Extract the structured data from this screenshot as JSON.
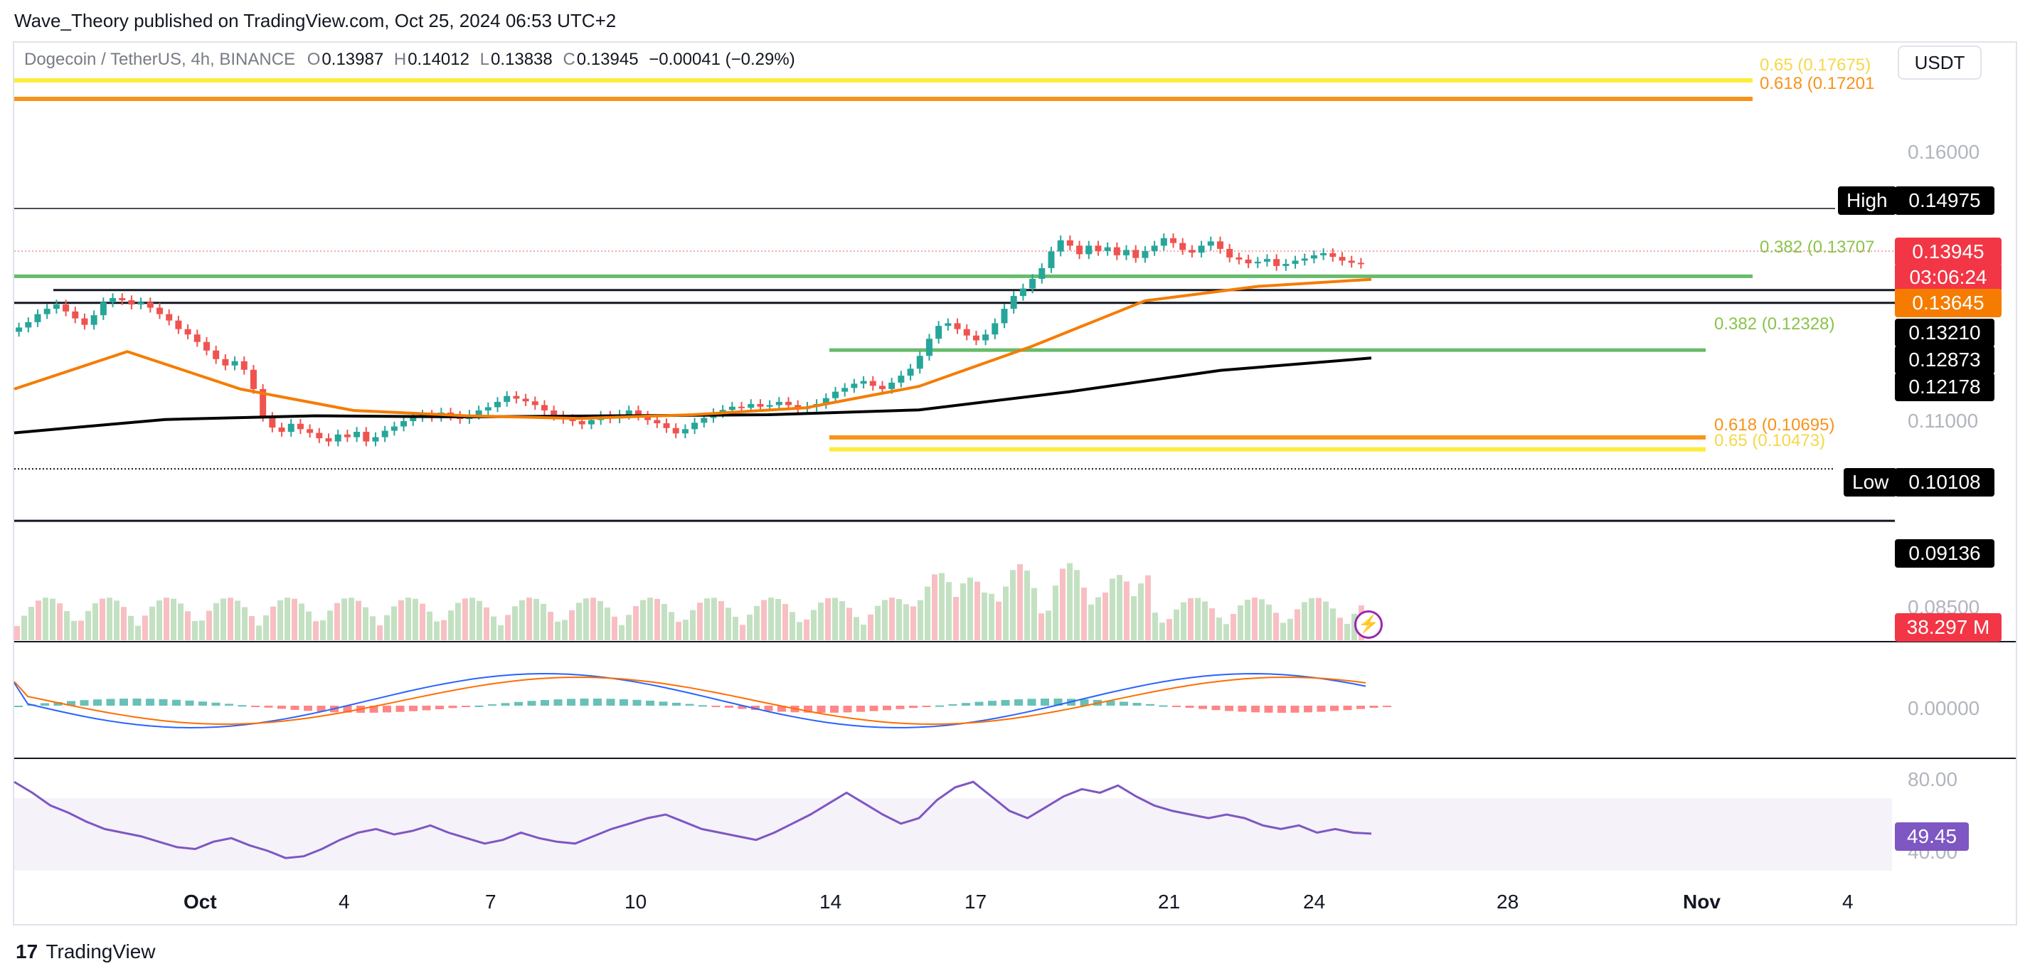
{
  "header": {
    "published_by": "Wave_Theory published on TradingView.com, Oct 25, 2024 06:53 UTC+2"
  },
  "legend": {
    "symbol": "Dogecoin / TetherUS, 4h, BINANCE",
    "open_key": "O",
    "open": "0.13987",
    "high_key": "H",
    "high": "0.14012",
    "low_key": "L",
    "low": "0.13838",
    "close_key": "C",
    "close": "0.13945",
    "change": "−0.00041 (−0.29%)"
  },
  "currency": "USDT",
  "price_scale": [
    "0.16000",
    "0.11000",
    "0.08500",
    "0.00000",
    "80.00",
    "40.00"
  ],
  "price_tags": {
    "high_label": "High",
    "high_value": "0.14975",
    "last": "0.13945",
    "countdown": "03:06:24",
    "ema50": "0.13645",
    "level_1": "0.13210",
    "level_2": "0.12873",
    "ema200": "0.12178",
    "low_label": "Low",
    "low_value": "0.10108",
    "level_3": "0.09136",
    "volume": "38.297 M",
    "rsi": "49.45"
  },
  "fib_labels": {
    "top_065": "0.65 (0.17675)",
    "top_0618": "0.618 (0.17201",
    "mid_0382": "0.382 (0.13707",
    "low_0382": "0.382 (0.12328)",
    "bottom_0618": "0.618 (0.10695)",
    "bottom_065": "0.65 (0.10473)"
  },
  "time_axis": [
    "Oct",
    "4",
    "7",
    "10",
    "14",
    "17",
    "21",
    "24",
    "28",
    "Nov",
    "4"
  ],
  "brand": {
    "logo": "17",
    "name": "TradingView"
  },
  "colors": {
    "up": "#26a69a",
    "down": "#ef5350",
    "ema50": "#f57c00",
    "ema200": "#000000",
    "fib_green": "#66bb6a",
    "fib_orange": "#f7931a",
    "fib_yellow": "#ffeb3b",
    "macd": "#2962ff",
    "signal": "#ff6d00",
    "rsi": "#7e57c2"
  },
  "chart_data": {
    "type": "candlestick",
    "title": "Dogecoin / TetherUS, 4h, BINANCE",
    "x_ticks": [
      "Oct",
      "4",
      "7",
      "10",
      "14",
      "17",
      "21",
      "24",
      "28",
      "Nov",
      "4"
    ],
    "price_range": [
      0.085,
      0.18
    ],
    "closes": [
      0.1275,
      0.1285,
      0.13,
      0.131,
      0.1318,
      0.1305,
      0.1292,
      0.128,
      0.1298,
      0.1322,
      0.133,
      0.1326,
      0.1318,
      0.1322,
      0.1312,
      0.13,
      0.1288,
      0.1272,
      0.1262,
      0.1248,
      0.1232,
      0.1216,
      0.1204,
      0.1212,
      0.1196,
      0.116,
      0.1108,
      0.1088,
      0.108,
      0.1095,
      0.1085,
      0.1078,
      0.1068,
      0.1062,
      0.1075,
      0.107,
      0.108,
      0.1062,
      0.107,
      0.1082,
      0.109,
      0.11,
      0.1108,
      0.1112,
      0.1108,
      0.1116,
      0.111,
      0.1104,
      0.1112,
      0.112,
      0.1126,
      0.1136,
      0.1147,
      0.1142,
      0.1137,
      0.113,
      0.112,
      0.111,
      0.1104,
      0.11,
      0.1094,
      0.1102,
      0.111,
      0.1105,
      0.1112,
      0.112,
      0.111,
      0.1102,
      0.1096,
      0.1087,
      0.1077,
      0.1085,
      0.1097,
      0.1106,
      0.1115,
      0.1121,
      0.1127,
      0.1125,
      0.1132,
      0.1127,
      0.113,
      0.1136,
      0.113,
      0.1123,
      0.1127,
      0.1132,
      0.1143,
      0.1155,
      0.1162,
      0.117,
      0.1175,
      0.1166,
      0.116,
      0.1172,
      0.1185,
      0.1198,
      0.1222,
      0.1254,
      0.1278,
      0.1283,
      0.1272,
      0.126,
      0.1251,
      0.1262,
      0.1283,
      0.131,
      0.1334,
      0.1348,
      0.1366,
      0.1386,
      0.1417,
      0.1438,
      0.1428,
      0.1412,
      0.1428,
      0.1418,
      0.1425,
      0.141,
      0.142,
      0.1405,
      0.1418,
      0.1428,
      0.1442,
      0.1433,
      0.142,
      0.1415,
      0.1428,
      0.1436,
      0.1422,
      0.1406,
      0.1402,
      0.1395,
      0.1398,
      0.1403,
      0.139,
      0.1394,
      0.14,
      0.1404,
      0.141,
      0.1414,
      0.1407,
      0.14,
      0.1396,
      0.1394
    ],
    "ema50": [
      0.116,
      0.123,
      0.116,
      0.112,
      0.111,
      0.1105,
      0.1112,
      0.1125,
      0.1165,
      0.124,
      0.1325,
      0.1352,
      0.1365
    ],
    "ema200": [
      0.1078,
      0.1103,
      0.111,
      0.1108,
      0.111,
      0.1112,
      0.1121,
      0.1155,
      0.1195,
      0.1218
    ],
    "horizontal_levels": [
      0.14975,
      0.13707,
      0.1345,
      0.1321,
      0.12328,
      0.10695,
      0.10473,
      0.10108,
      0.09136,
      0.17675,
      0.17201
    ],
    "volume_last": "38.297 M",
    "rsi": [
      78,
      72,
      65,
      61,
      56,
      52,
      50,
      48,
      45,
      42,
      41,
      45,
      47,
      43,
      40,
      36,
      37,
      41,
      46,
      50,
      52,
      49,
      51,
      54,
      50,
      47,
      44,
      46,
      50,
      47,
      45,
      44,
      48,
      52,
      55,
      58,
      60,
      56,
      52,
      50,
      48,
      46,
      50,
      55,
      60,
      66,
      72,
      66,
      60,
      55,
      58,
      68,
      75,
      78,
      70,
      62,
      58,
      64,
      70,
      74,
      72,
      76,
      70,
      65,
      62,
      60,
      58,
      60,
      58,
      54,
      52,
      54,
      50,
      52,
      50,
      49.45
    ]
  }
}
